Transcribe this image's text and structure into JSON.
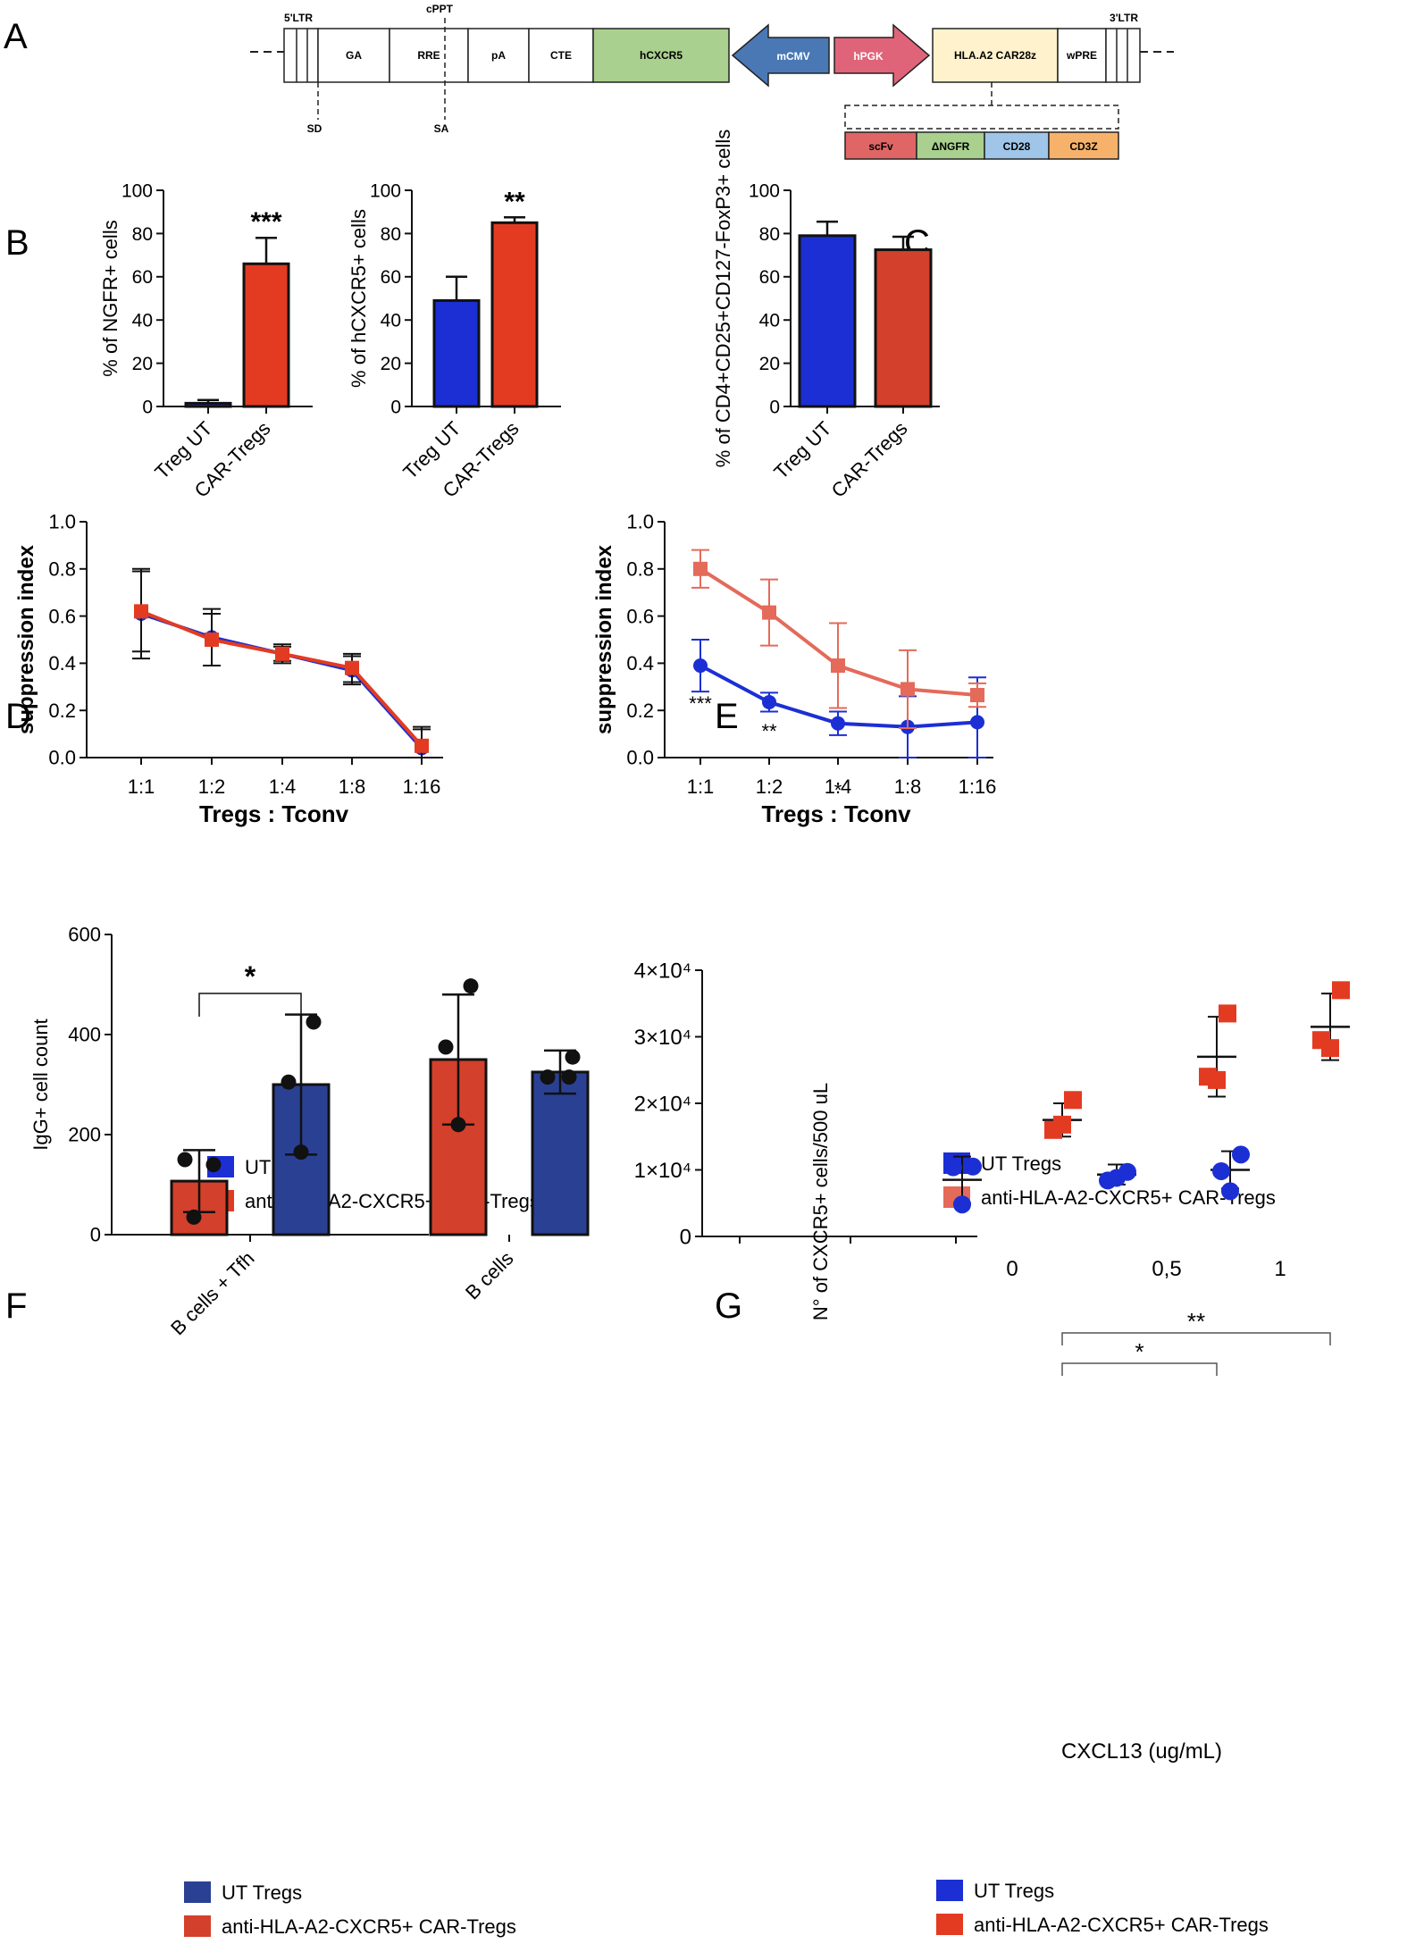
{
  "colors": {
    "blue": "#1c2fd4",
    "red": "#e33b22",
    "salmon": "#e46a5a",
    "navy": "#2a4193",
    "brick": "#d3402b",
    "construct_green": "#a9d08e",
    "construct_cream": "#fff2cc",
    "construct_blue": "#4a78b5",
    "construct_pink": "#e06479",
    "scfv": "#e06666",
    "dngfr": "#a9d08e",
    "cd28": "#9fc5e8",
    "cd3z": "#f6b26b"
  },
  "panel_A": {
    "letter": "A",
    "segments": [
      "GA",
      "RRE",
      "pA",
      "CTE",
      "hCXCR5",
      "mCMV",
      "hPGK",
      "HLA.A2 CAR28z",
      "wPRE"
    ],
    "top_labels": [
      "5'LTR",
      "cPPT",
      "3'LTR"
    ],
    "bottom_labels": [
      "SD",
      "SA"
    ],
    "car_parts": [
      "scFv",
      "ΔNGFR",
      "CD28",
      "CD3Z"
    ]
  },
  "chart_data": [
    {
      "id": "B1",
      "panel": "B",
      "type": "bar",
      "ylabel": "% of NGFR+ cells",
      "ylim": [
        0,
        100
      ],
      "yticks": [
        0,
        20,
        40,
        60,
        80,
        100
      ],
      "categories": [
        "Treg UT",
        "CAR-Tregs"
      ],
      "values": [
        1.5,
        66
      ],
      "errors": [
        1.5,
        12
      ],
      "bar_colors": [
        "blue",
        "red"
      ],
      "annotations": [
        {
          "text": "***",
          "category": 1
        }
      ]
    },
    {
      "id": "B2",
      "panel": "B",
      "type": "bar",
      "ylabel": "% of hCXCR5+ cells",
      "ylim": [
        0,
        100
      ],
      "yticks": [
        0,
        20,
        40,
        60,
        80,
        100
      ],
      "categories": [
        "Treg UT",
        "CAR-Tregs"
      ],
      "values": [
        49,
        85
      ],
      "errors": [
        11,
        2.5
      ],
      "bar_colors": [
        "blue",
        "red"
      ],
      "annotations": [
        {
          "text": "**",
          "category": 1
        }
      ]
    },
    {
      "id": "C",
      "panel": "C",
      "type": "bar",
      "ylabel": "% of CD4+CD25+CD127-FoxP3+ cells",
      "ylim": [
        0,
        100
      ],
      "yticks": [
        0,
        20,
        40,
        60,
        80,
        100
      ],
      "categories": [
        "Treg UT",
        "CAR-Tregs"
      ],
      "values": [
        79,
        72.5
      ],
      "errors": [
        6.5,
        6
      ],
      "bar_colors": [
        "blue",
        "brick"
      ],
      "annotations": []
    },
    {
      "id": "D",
      "panel": "D",
      "type": "line",
      "xlabel": "Tregs : Tconv",
      "ylabel": "suppression index",
      "ylim": [
        0,
        1
      ],
      "yticks": [
        "0.0",
        "0.2",
        "0.4",
        "0.6",
        "0.8",
        "1.0"
      ],
      "categories": [
        "1:1",
        "1:2",
        "1:4",
        "1:8",
        "1:16"
      ],
      "series": [
        {
          "name": "UT Tregs",
          "color": "blue",
          "marker": "circle",
          "values": [
            0.61,
            0.51,
            0.44,
            0.37,
            0.04
          ],
          "errors": [
            0.19,
            0.12,
            0.04,
            0.06,
            0.09
          ]
        },
        {
          "name": "anti-HLA-A2-CXCR5+ CAR-Tregs",
          "color": "red",
          "marker": "square",
          "values": [
            0.62,
            0.5,
            0.44,
            0.38,
            0.05
          ],
          "errors": [
            0.17,
            0.11,
            0.03,
            0.06,
            0.07
          ]
        }
      ],
      "annotations": [],
      "legend": [
        "UT Tregs",
        "anti-HLA-A2-CXCR5+ CAR-Tregs"
      ]
    },
    {
      "id": "E",
      "panel": "E",
      "type": "line",
      "xlabel": "Tregs : Tconv",
      "ylabel": "suppression index",
      "ylim": [
        0,
        1
      ],
      "yticks": [
        "0.0",
        "0.2",
        "0.4",
        "0.6",
        "0.8",
        "1.0"
      ],
      "categories": [
        "1:1",
        "1:2",
        "1:4",
        "1:8",
        "1:16"
      ],
      "series": [
        {
          "name": "UT Tregs",
          "color": "blue",
          "marker": "circle",
          "values": [
            0.39,
            0.235,
            0.145,
            0.13,
            0.15
          ],
          "errors": [
            0.11,
            0.04,
            0.05,
            0.13,
            0.19
          ]
        },
        {
          "name": "anti-HLA-A2-CXCR5+ CAR-Tregs",
          "color": "salmon",
          "marker": "square",
          "values": [
            0.8,
            0.615,
            0.39,
            0.29,
            0.265
          ],
          "errors": [
            0.08,
            0.14,
            0.18,
            0.165,
            0.05
          ]
        }
      ],
      "annotations": [
        {
          "text": "***",
          "category": 0
        },
        {
          "text": "**",
          "category": 1
        },
        {
          "text": "*",
          "category": 2
        }
      ],
      "legend": [
        "UT Tregs",
        "anti-HLA-A2-CXCR5+ CAR-Tregs"
      ]
    },
    {
      "id": "F",
      "panel": "F",
      "type": "bar",
      "ylabel": "IgG+ cell count",
      "ylim": [
        0,
        600
      ],
      "yticks": [
        0,
        200,
        400,
        600
      ],
      "categories": [
        "B cells + Tfh",
        "B cells"
      ],
      "series": [
        {
          "name": "anti-HLA-A2-CXCR5+ CAR-Tregs",
          "color": "brick",
          "values": [
            107,
            350
          ],
          "errors": [
            62,
            130
          ],
          "points": [
            [
              35,
              140,
              150
            ],
            [
              220,
              375,
              497
            ]
          ]
        },
        {
          "name": "UT Tregs",
          "color": "navy",
          "values": [
            300,
            325
          ],
          "errors": [
            140,
            43
          ],
          "points": [
            [
              165,
              305,
              425
            ],
            [
              315,
              315,
              355
            ]
          ]
        }
      ],
      "significance": {
        "text": "*",
        "between": [
          "B cells + Tfh CAR-Tregs",
          "B cells + Tfh UT Tregs"
        ]
      },
      "legend": [
        "UT Tregs",
        "anti-HLA-A2-CXCR5+ CAR-Tregs"
      ]
    },
    {
      "id": "G",
      "panel": "G",
      "type": "scatter",
      "xlabel": "CXCL13 (ug/mL)",
      "ylabel": "N° of CXCR5+ cells/500 uL",
      "ylim": [
        0,
        40000
      ],
      "ytick_labels": [
        "0",
        "1×10⁴",
        "2×10⁴",
        "3×10⁴",
        "4×10⁴"
      ],
      "categories": [
        "0",
        "0,5",
        "1"
      ],
      "series": [
        {
          "name": "UT Tregs",
          "color": "blue",
          "marker": "circle",
          "means": [
            8500,
            9300,
            10000
          ],
          "errors": [
            3500,
            1500,
            2800
          ],
          "points": [
            [
              10500,
              10400,
              4800
            ],
            [
              9700,
              8400,
              8800
            ],
            [
              12300,
              9800,
              6800
            ]
          ]
        },
        {
          "name": "anti-HLA-A2-CXCR5+ CAR-Tregs",
          "color": "red",
          "marker": "square",
          "means": [
            17500,
            27000,
            31500
          ],
          "errors": [
            2500,
            6000,
            5000
          ],
          "points": [
            [
              20500,
              16000,
              16800
            ],
            [
              33500,
              24000,
              23500
            ],
            [
              37000,
              29500,
              28300
            ]
          ]
        }
      ],
      "significance": [
        {
          "text": "*",
          "from": "0",
          "to": "0,5"
        },
        {
          "text": "**",
          "from": "0",
          "to": "1"
        }
      ],
      "legend": [
        "UT Tregs",
        "anti-HLA-A2-CXCR5+ CAR-Tregs"
      ]
    }
  ]
}
